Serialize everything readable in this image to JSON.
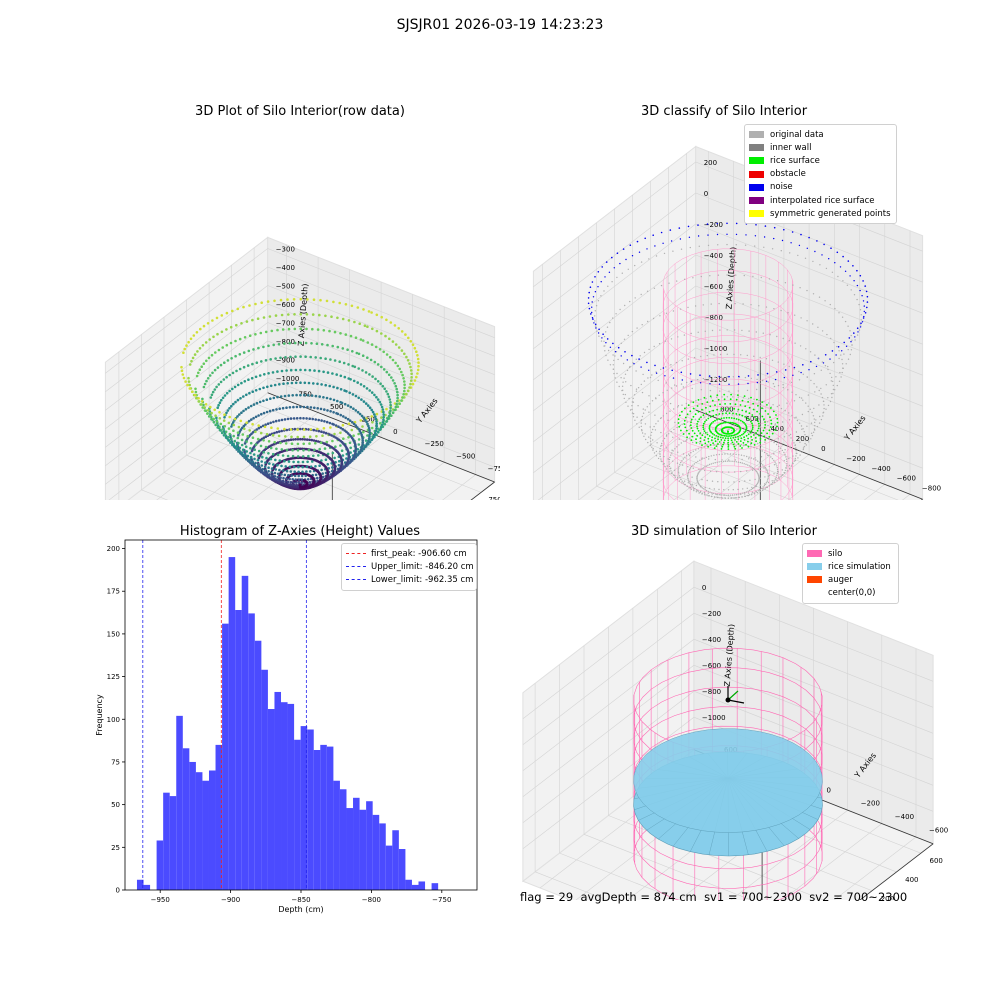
{
  "suptitle": "SJSJR01 2026-03-19 14:23:23",
  "chart_data": [
    {
      "type": "scatter",
      "title": "3D Plot of Silo Interior(row data)",
      "xlabel": "X Axies",
      "ylabel": "Y Axies",
      "zlabel": "Z Axies (Depth)",
      "xticks": [
        "−750",
        "−500",
        "−250",
        "0",
        "250",
        "500",
        "750"
      ],
      "yticks": [
        "−750",
        "−500",
        "−250",
        "0",
        "250",
        "500",
        "750"
      ],
      "zticks": [
        "−300",
        "−400",
        "−500",
        "−600",
        "−700",
        "−800",
        "−900",
        "−1000"
      ],
      "colormap": "viridis",
      "depth_range": [
        -1000,
        -300
      ],
      "radius": 800
    },
    {
      "type": "scatter",
      "title": "3D classify of Silo Interior",
      "xlabel": "X Axies",
      "ylabel": "Y Axies",
      "zlabel": "Z Axies (Depth)",
      "xticks": [
        "−800",
        "−600",
        "−400",
        "−200",
        "0",
        "200",
        "400",
        "600",
        "800"
      ],
      "yticks": [
        "−800",
        "−600",
        "−400",
        "−200",
        "0",
        "200",
        "400",
        "600",
        "800"
      ],
      "zticks": [
        "200",
        "0",
        "−200",
        "−400",
        "−600",
        "−800",
        "−1000",
        "−1200"
      ],
      "legend": [
        {
          "label": "original data",
          "color": "#b0b0b0"
        },
        {
          "label": "inner wall",
          "color": "#808080"
        },
        {
          "label": "rice surface",
          "color": "#00ee00"
        },
        {
          "label": "obstacle",
          "color": "#ee0000"
        },
        {
          "label": "noise",
          "color": "#0000ee"
        },
        {
          "label": "interpolated rice surface",
          "color": "#800080"
        },
        {
          "label": "symmetric generated points",
          "color": "#ffff00"
        }
      ]
    },
    {
      "type": "bar",
      "title": "Histogram of Z-Axies (Height) Values",
      "xlabel": "Depth (cm)",
      "ylabel": "Frequency",
      "xlim": [
        -975,
        -725
      ],
      "ylim": [
        0,
        205
      ],
      "xticks": [
        -950,
        -900,
        -850,
        -800,
        -750
      ],
      "xtick_labels": [
        "−950",
        "−900",
        "−850",
        "−800",
        "−750"
      ],
      "yticks": [
        0,
        25,
        50,
        75,
        100,
        125,
        150,
        175,
        200
      ],
      "bin_start": -966.5,
      "bin_width": 4.65,
      "counts": [
        6,
        3,
        0,
        29,
        57,
        55,
        102,
        83,
        75,
        69,
        64,
        70,
        85,
        156,
        195,
        164,
        184,
        162,
        146,
        129,
        106,
        116,
        110,
        109,
        88,
        96,
        94,
        82,
        85,
        84,
        64,
        59,
        48,
        54,
        47,
        52,
        44,
        39,
        26,
        35,
        24,
        6,
        3,
        5,
        0,
        4
      ],
      "lines": [
        {
          "label": "first_peak: -906.60 cm",
          "value": -906.6,
          "color": "#ee2222"
        },
        {
          "label": "Upper_limit: -846.20 cm",
          "value": -846.2,
          "color": "#2222ee"
        },
        {
          "label": "Lower_limit: -962.35 cm",
          "value": -962.35,
          "color": "#2222ee"
        }
      ],
      "bar_color": "#4b4bff"
    },
    {
      "type": "scatter",
      "title": "3D simulation of Silo Interior",
      "xlabel": "X Axies",
      "ylabel": "Y Axies",
      "zlabel": "Z Axies (Depth)",
      "xticks": [
        "−600",
        "−400",
        "−200",
        "0",
        "200",
        "400",
        "600"
      ],
      "yticks": [
        "−600",
        "−400",
        "−200",
        "0",
        "200",
        "400",
        "600"
      ],
      "zticks": [
        "0",
        "−200",
        "−400",
        "−600",
        "−800",
        "−1000"
      ],
      "legend": [
        {
          "label": "silo",
          "color": "#ff69b4"
        },
        {
          "label": "rice simulation",
          "color": "#87ceeb"
        },
        {
          "label": "auger",
          "color": "#ff4500"
        },
        {
          "label": "center(0,0)",
          "color": ""
        }
      ]
    }
  ],
  "footer": {
    "flag": "flag = 29",
    "avg_depth": "avgDepth = 874 cm",
    "sv1": "sv1 = 700~2300",
    "sv2": "sv2 = 700~2300"
  }
}
